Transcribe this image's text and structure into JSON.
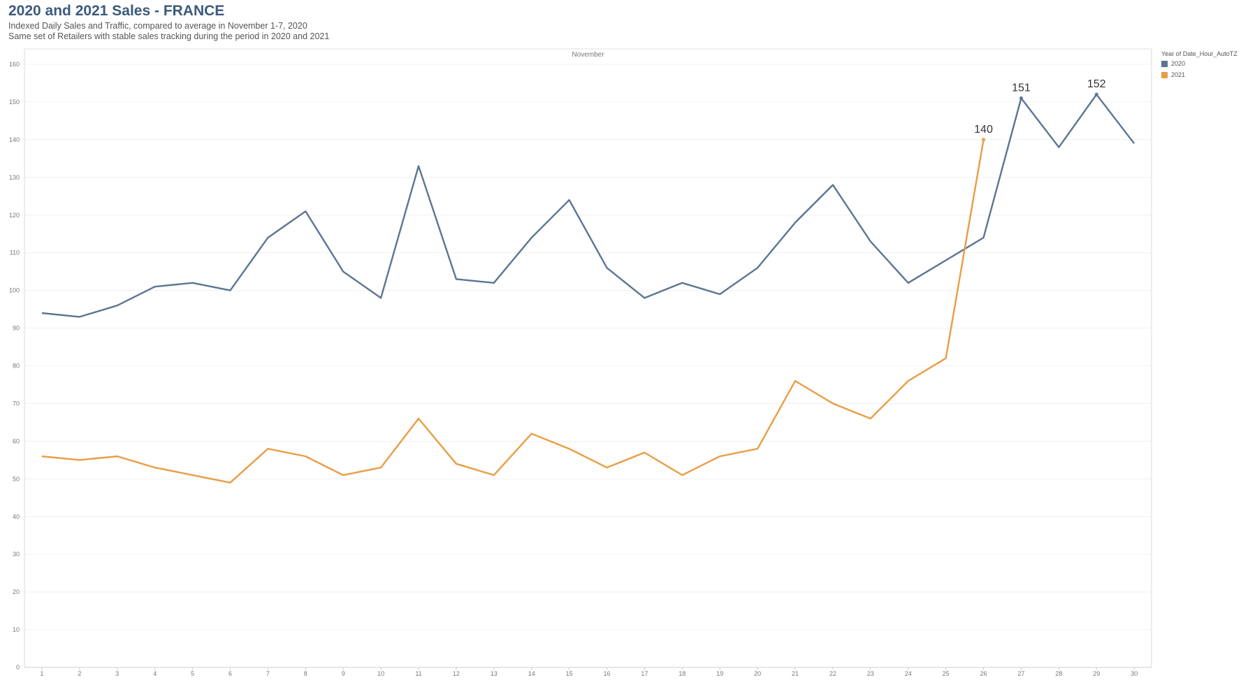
{
  "title": "2020 and 2021 Sales - FRANCE",
  "subtitle_line1": "Indexed Daily Sales and Traffic, compared to average in November 1-7, 2020",
  "subtitle_line2": "Same set of Retailers with stable sales tracking during the period in 2020 and 2021",
  "legend": {
    "title": "Year of Date_Hour_AutoTZ",
    "items": [
      {
        "label": "2020",
        "color": "#5b7593"
      },
      {
        "label": "2021",
        "color": "#e99d45"
      }
    ]
  },
  "chart_data": {
    "type": "line",
    "header": "November",
    "x": [
      1,
      2,
      3,
      4,
      5,
      6,
      7,
      8,
      9,
      10,
      11,
      12,
      13,
      14,
      15,
      16,
      17,
      18,
      19,
      20,
      21,
      22,
      23,
      24,
      25,
      26,
      27,
      28,
      29,
      30
    ],
    "x_tick_labels": [
      "1",
      "2",
      "3",
      "4",
      "5",
      "6",
      "7",
      "8",
      "9",
      "10",
      "11",
      "12",
      "13",
      "14",
      "15",
      "16",
      "17",
      "18",
      "19",
      "20",
      "21",
      "22",
      "23",
      "24",
      "25",
      "26",
      "27",
      "28",
      "29",
      "30"
    ],
    "ylim": [
      0,
      160
    ],
    "y_ticks": [
      0,
      10,
      20,
      30,
      40,
      50,
      60,
      70,
      80,
      90,
      100,
      110,
      120,
      130,
      140,
      150,
      160
    ],
    "grid": true,
    "legend_position": "right",
    "series": [
      {
        "name": "2020",
        "color": "#5b7593",
        "values": [
          94,
          93,
          96,
          101,
          102,
          100,
          114,
          121,
          105,
          98,
          133,
          103,
          102,
          114,
          124,
          106,
          98,
          102,
          99,
          106,
          118,
          128,
          113,
          102,
          108,
          114,
          151,
          138,
          152,
          139
        ],
        "annotations": [
          {
            "x": 27,
            "label": "151"
          },
          {
            "x": 29,
            "label": "152"
          }
        ]
      },
      {
        "name": "2021",
        "color": "#e99d45",
        "values": [
          56,
          55,
          56,
          53,
          51,
          49,
          58,
          56,
          51,
          53,
          66,
          54,
          51,
          62,
          58,
          53,
          57,
          51,
          56,
          58,
          76,
          70,
          66,
          76,
          82,
          140,
          null,
          null,
          null,
          null
        ],
        "annotations": [
          {
            "x": 26,
            "label": "140"
          }
        ]
      }
    ]
  }
}
